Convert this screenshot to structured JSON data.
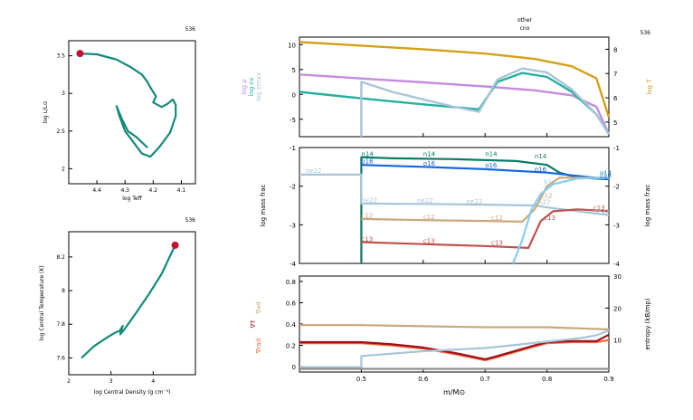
{
  "model_number": "536",
  "colors": {
    "teal": "#138a7b",
    "dot": "#c8102e",
    "purple": "#c58be0",
    "gold": "#d4a017",
    "lightblue": "#a8c4d8",
    "cyan": "#24b09e",
    "green": "#0b7a68",
    "blue": "#1565e0",
    "tan": "#c9a77e",
    "red": "#c0504d",
    "sky": "#87cdf0",
    "orange": "#f06a3c",
    "darkred": "#a10f1a",
    "gray": "#8d8d8d"
  },
  "chart_data": [
    {
      "id": "hr",
      "type": "line",
      "number": "536",
      "xlabel": "log Teff",
      "ylabel": "log L/L⊙",
      "xlim": [
        4.5,
        4.05
      ],
      "ylim": [
        1.8,
        3.7
      ],
      "x_ticks": [
        "4.4",
        "4.3",
        "4.2",
        "4.1"
      ],
      "y_ticks": [
        "3.5",
        "3",
        "2.5",
        "2"
      ],
      "series": [
        {
          "x": [
            4.46,
            4.4,
            4.33,
            4.28,
            4.24,
            4.22,
            4.21,
            4.2,
            4.19,
            4.2,
            4.17,
            4.15,
            4.13,
            4.12,
            4.12,
            4.14,
            4.18,
            4.21,
            4.24,
            4.27,
            4.3,
            4.32,
            4.33,
            4.31,
            4.29,
            4.26,
            4.24,
            4.22
          ],
          "y": [
            3.53,
            3.52,
            3.45,
            3.35,
            3.25,
            3.15,
            3.08,
            3.02,
            2.96,
            2.88,
            2.82,
            2.86,
            2.92,
            2.85,
            2.7,
            2.48,
            2.28,
            2.16,
            2.2,
            2.35,
            2.5,
            2.7,
            2.83,
            2.65,
            2.5,
            2.42,
            2.35,
            2.28
          ]
        }
      ],
      "current": {
        "x": 4.46,
        "y": 3.53
      }
    },
    {
      "id": "central",
      "type": "line",
      "number": "536",
      "xlabel": "log Central Density (g cm⁻³)",
      "ylabel": "log Central Temperature (K)",
      "xlim": [
        2,
        5
      ],
      "ylim": [
        7.5,
        8.35
      ],
      "x_ticks": [
        "2",
        "3",
        "4"
      ],
      "y_ticks": [
        "8.2",
        "8",
        "7.8",
        "7.6"
      ],
      "series": [
        {
          "x": [
            2.3,
            2.6,
            2.9,
            3.1,
            3.2,
            3.28,
            3.22,
            3.32,
            3.6,
            3.9,
            4.2,
            4.52
          ],
          "y": [
            7.6,
            7.67,
            7.72,
            7.75,
            7.76,
            7.79,
            7.74,
            7.77,
            7.87,
            7.98,
            8.1,
            8.27
          ]
        }
      ],
      "current": {
        "x": 4.52,
        "y": 8.27
      }
    },
    {
      "id": "profile_top",
      "type": "line",
      "number": "536",
      "title_lines": [
        "other",
        "cno"
      ],
      "ylabel_left": [
        "log ρ",
        "log εν",
        "log εmax"
      ],
      "ylabel_right": "log T",
      "xlim": [
        0.4,
        0.9
      ],
      "ylim_left": [
        -8.5,
        11.5
      ],
      "ylim_right": [
        4.4,
        8.5
      ],
      "left_ticks": [
        10,
        5,
        0,
        -5
      ],
      "right_ticks": [
        8,
        7,
        6,
        5
      ],
      "series": [
        {
          "name": "log ρ",
          "color_key": "purple",
          "x": [
            0.4,
            0.5,
            0.6,
            0.7,
            0.78,
            0.84,
            0.88,
            0.9
          ],
          "y": [
            4,
            3.2,
            2.4,
            1.6,
            0.8,
            -0.2,
            -2.5,
            -8
          ]
        },
        {
          "name": "log T",
          "color_key": "gold",
          "axis": "right",
          "x": [
            0.4,
            0.5,
            0.6,
            0.7,
            0.78,
            0.84,
            0.88,
            0.9
          ],
          "y": [
            8.3,
            8.15,
            8.0,
            7.82,
            7.6,
            7.3,
            6.8,
            5.2
          ]
        },
        {
          "name": "cyan",
          "color_key": "cyan",
          "x": [
            0.4,
            0.5,
            0.6,
            0.69,
            0.72,
            0.76,
            0.8,
            0.84,
            0.88,
            0.9
          ],
          "y": [
            0.5,
            -0.8,
            -2.0,
            -3.0,
            2.5,
            4.3,
            3.5,
            0.5,
            -4,
            -8
          ]
        },
        {
          "name": "lightblue",
          "color_key": "lightblue",
          "x": [
            0.5,
            0.5,
            0.55,
            0.6,
            0.65,
            0.69,
            0.72,
            0.76,
            0.8,
            0.84,
            0.88,
            0.9
          ],
          "y": [
            -8.5,
            2.5,
            0.5,
            -1.0,
            -2.5,
            -3.5,
            3.0,
            5.2,
            4.4,
            1.0,
            -4,
            -8
          ]
        }
      ]
    },
    {
      "id": "profile_mid",
      "type": "line",
      "ylabel_left": "log mass frac",
      "ylabel_right": "log mass frac",
      "xlim": [
        0.4,
        0.9
      ],
      "ylim": [
        -4,
        -1
      ],
      "y_ticks": [
        -1,
        -2,
        -3,
        -4
      ],
      "series": [
        {
          "name": "n14",
          "color_key": "green",
          "x": [
            0.5,
            0.5,
            0.55,
            0.65,
            0.75,
            0.8,
            0.82,
            0.85,
            0.9
          ],
          "y": [
            -4,
            -1.25,
            -1.28,
            -1.3,
            -1.35,
            -1.45,
            -1.65,
            -1.78,
            -1.82
          ]
        },
        {
          "name": "o16",
          "color_key": "blue",
          "x": [
            0.5,
            0.6,
            0.7,
            0.8,
            0.9
          ],
          "y": [
            -1.45,
            -1.5,
            -1.56,
            -1.65,
            -1.82
          ]
        },
        {
          "name": "ne22",
          "color_key": "lightblue",
          "x": [
            0.4,
            0.5,
            0.5,
            0.6,
            0.7,
            0.78,
            0.8,
            0.9
          ],
          "y": [
            -1.7,
            -1.7,
            -2.45,
            -2.46,
            -2.48,
            -2.5,
            -2.55,
            -2.75
          ]
        },
        {
          "name": "c12",
          "color_key": "tan",
          "x": [
            0.5,
            0.6,
            0.7,
            0.76,
            0.78,
            0.8,
            0.82,
            0.9
          ],
          "y": [
            -2.85,
            -2.88,
            -2.9,
            -2.92,
            -2.6,
            -2.0,
            -1.78,
            -1.78
          ]
        },
        {
          "name": "c13",
          "color_key": "red",
          "x": [
            0.5,
            0.6,
            0.7,
            0.77,
            0.79,
            0.81,
            0.85,
            0.9
          ],
          "y": [
            -3.45,
            -3.5,
            -3.55,
            -3.6,
            -2.9,
            -2.65,
            -2.6,
            -2.65
          ]
        },
        {
          "name": "h1",
          "color_key": "sky",
          "x": [
            0.745,
            0.76,
            0.775,
            0.79,
            0.81,
            0.85,
            0.9
          ],
          "y": [
            -4,
            -3.4,
            -2.6,
            -2.2,
            -1.95,
            -1.8,
            -1.78
          ]
        }
      ],
      "labels": {
        "n14": "n14",
        "o16": "o16",
        "ne22": "ne22",
        "c12": "c12",
        "c13": "c13",
        "h1": "h1"
      }
    },
    {
      "id": "profile_bot",
      "type": "line",
      "xlabel": "m/M⊙",
      "ylabel_left": [
        "∇ad",
        "∇T",
        "∇rad"
      ],
      "ylabel_right": "entropy (kB/mp)",
      "xlim": [
        0.4,
        0.9
      ],
      "ylim_left": [
        -0.05,
        0.85
      ],
      "ylim_right": [
        0,
        30
      ],
      "x_ticks": [
        "0.5",
        "0.6",
        "0.7",
        "0.8",
        "0.9"
      ],
      "left_ticks": [
        "0.8",
        "0.6",
        "0.4",
        "0.2",
        "0"
      ],
      "right_ticks": [
        "30",
        "20",
        "10"
      ],
      "series": [
        {
          "name": "∇ad",
          "color_key": "tan",
          "x": [
            0.4,
            0.5,
            0.6,
            0.7,
            0.8,
            0.85,
            0.9
          ],
          "y": [
            0.39,
            0.39,
            0.38,
            0.37,
            0.37,
            0.36,
            0.35
          ]
        },
        {
          "name": "∇rad",
          "color_key": "orange",
          "x": [
            0.4,
            0.5,
            0.55,
            0.6,
            0.65,
            0.7,
            0.72,
            0.75,
            0.78,
            0.8,
            0.84,
            0.88,
            0.9
          ],
          "y": [
            0.22,
            0.22,
            0.2,
            0.17,
            0.12,
            0.06,
            0.09,
            0.14,
            0.19,
            0.22,
            0.23,
            0.23,
            0.25
          ]
        },
        {
          "name": "∇T",
          "color_key": "darkred",
          "x": [
            0.4,
            0.5,
            0.55,
            0.6,
            0.65,
            0.7,
            0.72,
            0.75,
            0.78,
            0.8,
            0.84,
            0.88,
            0.9
          ],
          "y": [
            0.23,
            0.23,
            0.21,
            0.18,
            0.13,
            0.07,
            0.1,
            0.15,
            0.2,
            0.23,
            0.24,
            0.24,
            0.3
          ]
        },
        {
          "name": "entropy",
          "color_key": "lightblue",
          "axis": "right",
          "x": [
            0.4,
            0.5,
            0.5,
            0.6,
            0.7,
            0.75,
            0.8,
            0.85,
            0.88,
            0.9
          ],
          "y": [
            1.5,
            1.5,
            5,
            6.5,
            7.5,
            8.5,
            9.5,
            10.5,
            11.5,
            13
          ]
        },
        {
          "name": "gray",
          "color_key": "gray",
          "x": [
            0.4,
            0.9
          ],
          "y": [
            -0.02,
            -0.02
          ]
        }
      ]
    }
  ]
}
